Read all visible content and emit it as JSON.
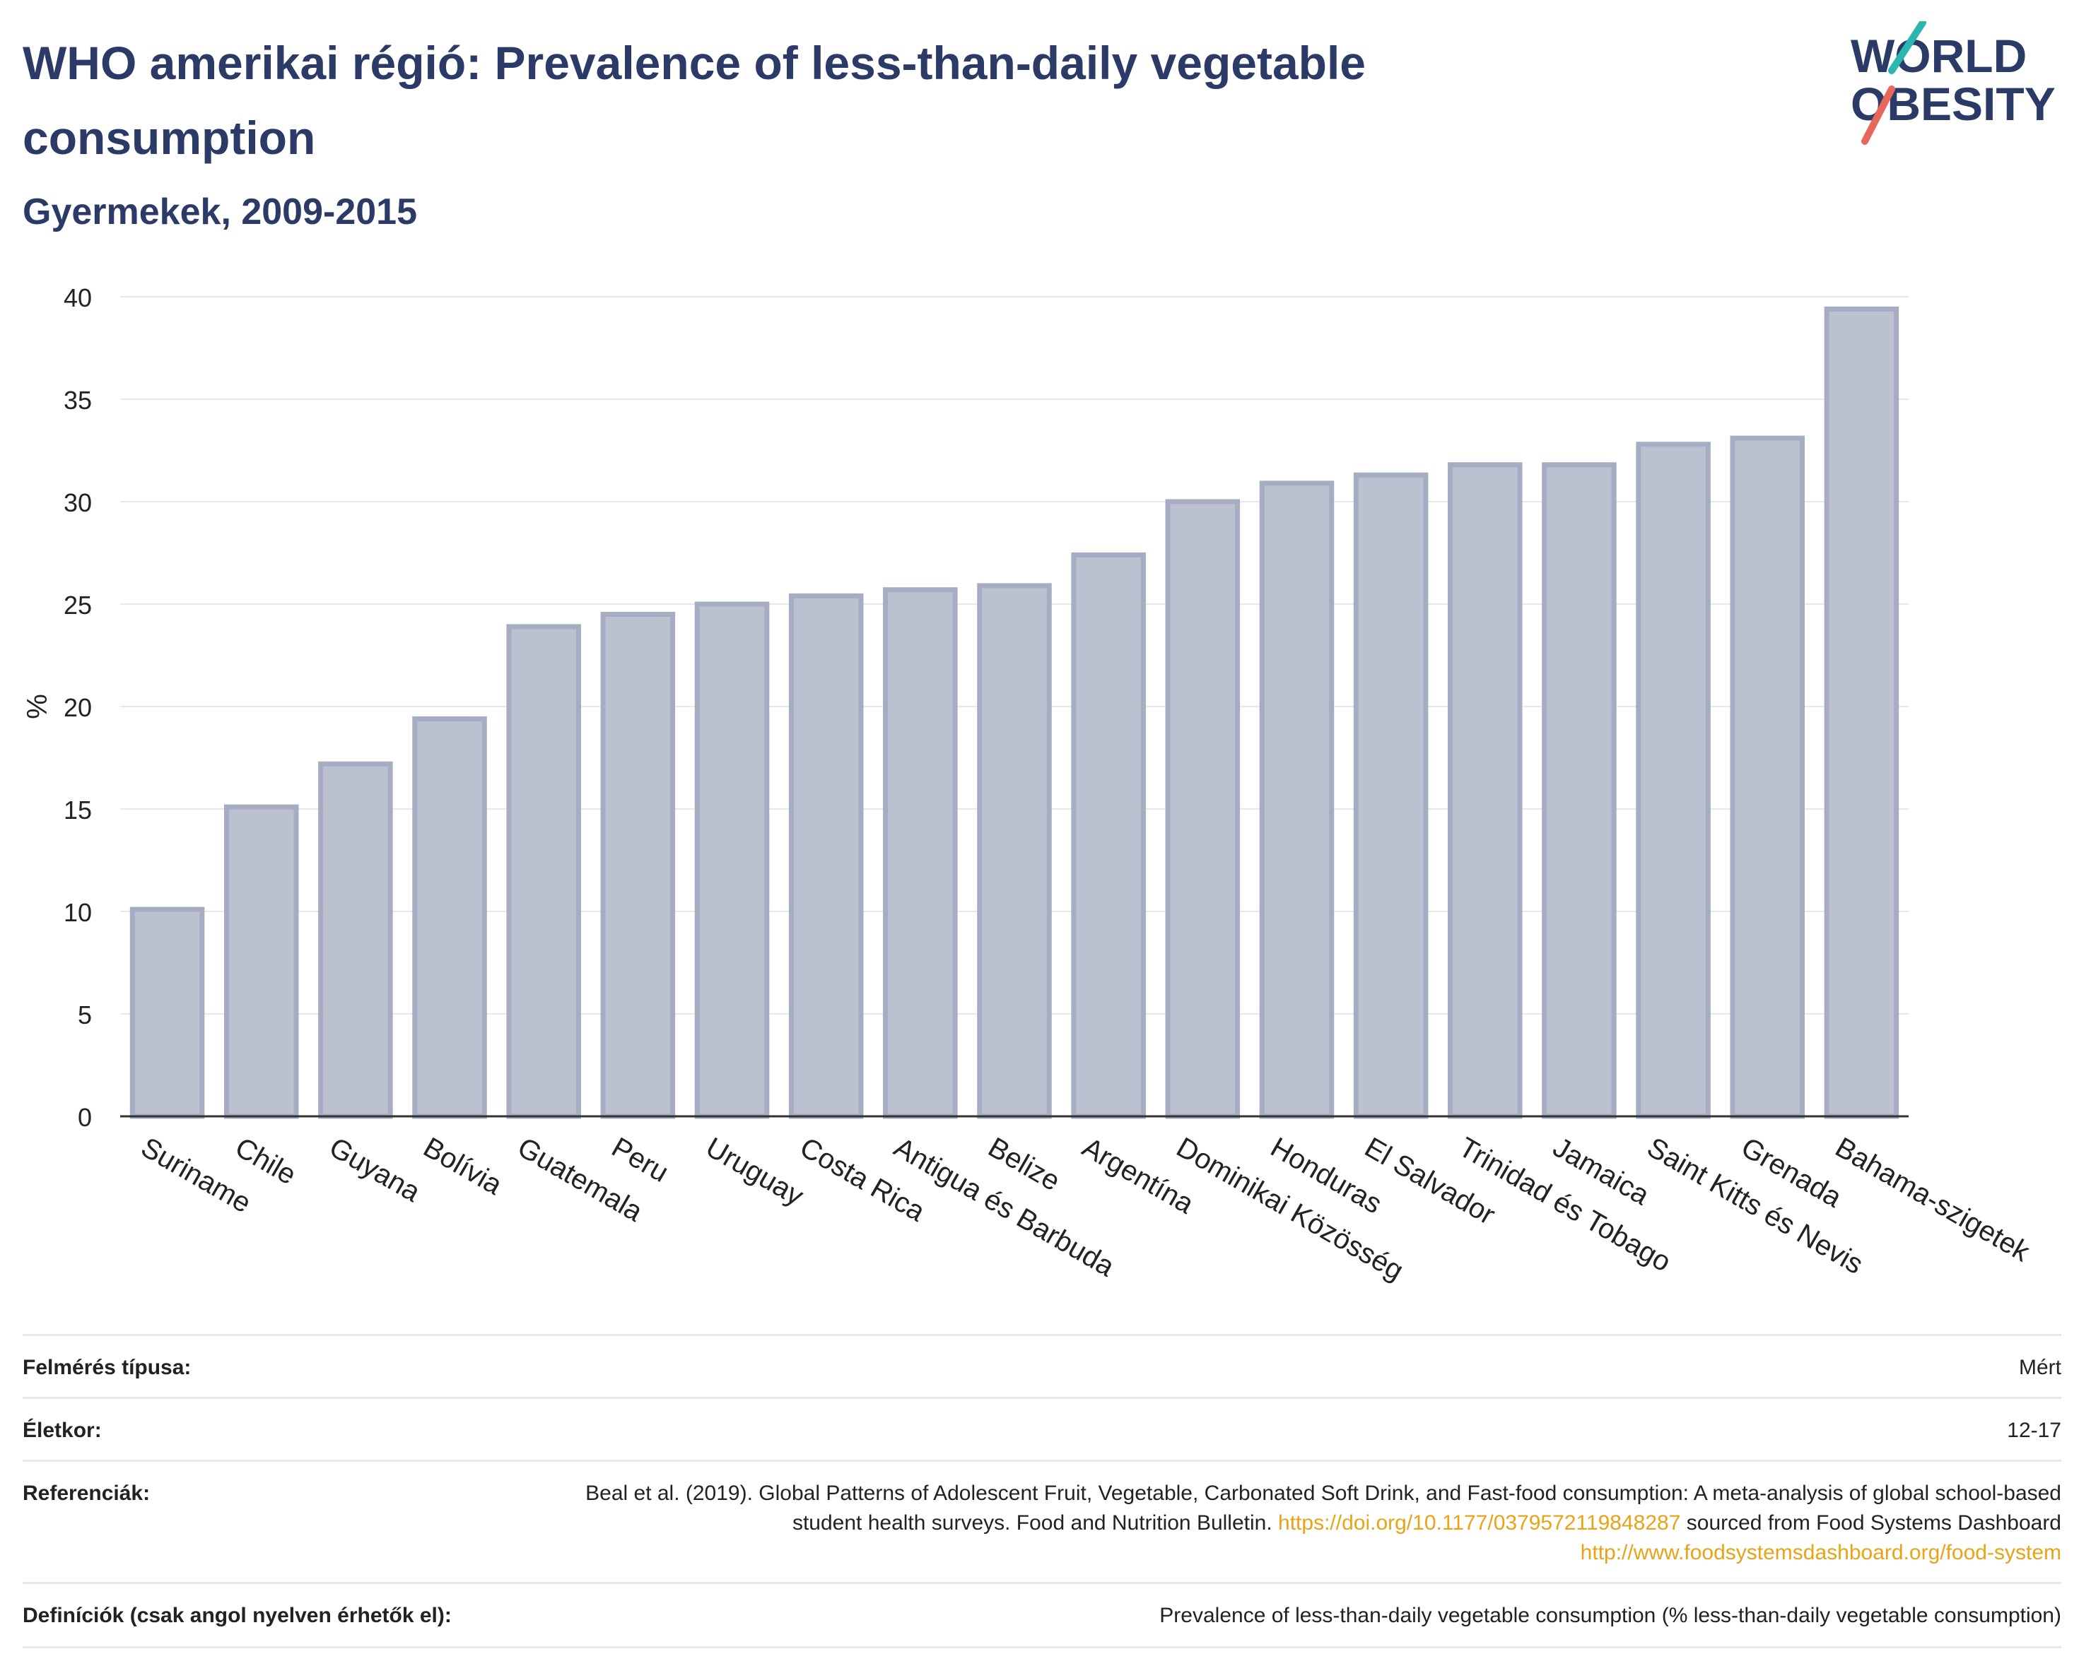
{
  "header": {
    "title": "WHO amerikai régió: Prevalence of less-than-daily vegetable consumption",
    "subtitle": "Gyermekek, 2009-2015"
  },
  "logo": {
    "line1": "WORLD",
    "line2": "OBESITY",
    "slash_colors": [
      "#2ab7b0",
      "#e8675a"
    ]
  },
  "chart_data": {
    "type": "bar",
    "categories": [
      "Suriname",
      "Chile",
      "Guyana",
      "Bolívia",
      "Guatemala",
      "Peru",
      "Uruguay",
      "Costa Rica",
      "Antigua és Barbuda",
      "Belize",
      "Argentína",
      "Dominikai Közösség",
      "Honduras",
      "El Salvador",
      "Trinidad és Tobago",
      "Jamaica",
      "Saint Kitts és Nevis",
      "Grenada",
      "Bahama-szigetek"
    ],
    "values": [
      10.1,
      15.1,
      17.2,
      19.4,
      23.9,
      24.5,
      25.0,
      25.4,
      25.7,
      25.9,
      27.4,
      30.0,
      30.9,
      31.3,
      31.8,
      31.8,
      32.8,
      33.1,
      39.4
    ],
    "ylabel": "%",
    "xlabel": "",
    "ylim": [
      0,
      40
    ],
    "yticks": [
      0,
      5,
      10,
      15,
      20,
      25,
      30,
      35,
      40
    ],
    "grid": true,
    "bar_fill": "#bcc1d0",
    "bar_stroke": "#a6adc2"
  },
  "info": {
    "survey_type_label": "Felmérés típusa:",
    "survey_type_value": "Mért",
    "age_label": "Életkor:",
    "age_value": "12-17",
    "references_label": "Referenciák:",
    "references_text_1": "Beal et al. (2019). Global Patterns of Adolescent Fruit, Vegetable, Carbonated Soft Drink, and Fast-food consumption: A meta-analysis of global school-based student health surveys. Food and Nutrition Bulletin.",
    "references_link_1": "https://doi.org/10.1177/0379572119848287",
    "references_text_2": "sourced from Food Systems Dashboard",
    "references_link_2": "http://www.foodsystemsdashboard.org/food-system",
    "definitions_label": "Definíciók (csak angol nyelven érhetők el):",
    "definitions_value": "Prevalence of less-than-daily vegetable consumption (% less-than-daily vegetable consumption)"
  }
}
